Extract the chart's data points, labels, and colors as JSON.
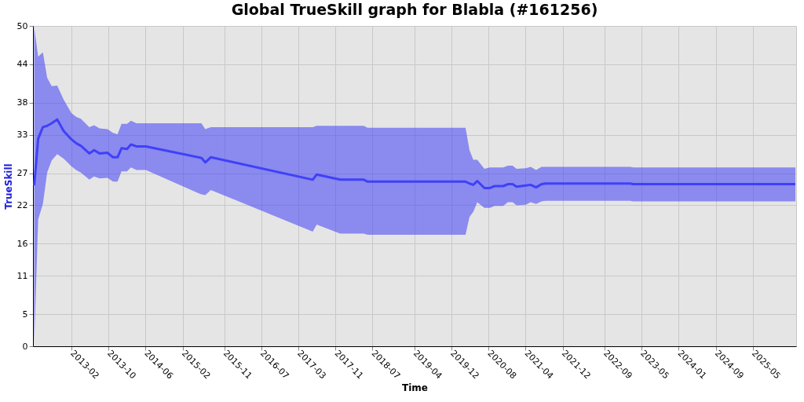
{
  "chart_data": {
    "type": "line",
    "title": "Global TrueSkill graph for Blabla (#161256)",
    "xlabel": "Time",
    "ylabel": "TrueSkill",
    "x": [
      "2012-06-02",
      "2012-06-28",
      "2012-07-29",
      "2012-08-26",
      "2012-09-25",
      "2012-10-31",
      "2012-12-12",
      "2013-02-01",
      "2013-03-04",
      "2013-04-04",
      "2013-05-30",
      "2013-06-30",
      "2013-08-05",
      "2013-09-26",
      "2013-11-01",
      "2013-12-01",
      "2013-12-27",
      "2014-02-01",
      "2014-02-27",
      "2014-04-04",
      "2014-06-05",
      "2015-06-04",
      "2015-06-30",
      "2015-08-05",
      "2017-06-04",
      "2017-06-30",
      "2017-12-01",
      "2018-05-05",
      "2018-05-30",
      "2020-03-03",
      "2020-03-29",
      "2020-04-23",
      "2020-05-19",
      "2020-07-05",
      "2020-08-10",
      "2020-09-10",
      "2020-11-05",
      "2020-12-06",
      "2021-01-06",
      "2021-02-01",
      "2021-04-03",
      "2021-05-04",
      "2021-06-09",
      "2021-07-15",
      "2021-08-10",
      "2023-02-16",
      "2023-03-09",
      "2026-02-05"
    ],
    "series": [
      {
        "color": "#4040f8",
        "values": [
          25.1,
          32.4,
          34.2,
          34.4,
          34.8,
          35.4,
          33.6,
          32.3,
          31.7,
          31.3,
          30.1,
          30.6,
          30.1,
          30.2,
          29.5,
          29.5,
          30.9,
          30.8,
          31.5,
          31.2,
          31.2,
          29.4,
          28.7,
          29.5,
          26.0,
          26.8,
          26.0,
          26.0,
          25.7,
          25.7,
          25.4,
          25.2,
          25.8,
          24.7,
          24.7,
          25.0,
          25.0,
          25.3,
          25.3,
          24.9,
          25.1,
          25.2,
          24.8,
          25.3,
          25.4,
          25.4,
          25.3,
          25.3
        ],
        "lower": [
          0.4,
          19.8,
          22.2,
          27.1,
          29.0,
          30.0,
          29.3,
          28.1,
          27.5,
          27.1,
          26.0,
          26.5,
          26.2,
          26.3,
          25.7,
          25.7,
          27.3,
          27.3,
          27.9,
          27.5,
          27.5,
          23.7,
          23.6,
          24.4,
          17.9,
          19.0,
          17.6,
          17.6,
          17.4,
          17.4,
          20.2,
          21.0,
          22.5,
          21.6,
          21.6,
          21.9,
          21.9,
          22.5,
          22.5,
          22.0,
          22.1,
          22.5,
          22.2,
          22.6,
          22.7,
          22.7,
          22.6,
          22.6
        ],
        "upper": [
          49.8,
          45.2,
          45.9,
          41.9,
          40.6,
          40.7,
          38.5,
          36.4,
          35.8,
          35.5,
          34.2,
          34.5,
          34.0,
          33.9,
          33.3,
          33.1,
          34.7,
          34.7,
          35.2,
          34.8,
          34.8,
          34.8,
          33.9,
          34.2,
          34.2,
          34.4,
          34.4,
          34.4,
          34.1,
          34.1,
          30.6,
          29.1,
          29.1,
          27.7,
          27.9,
          27.9,
          27.9,
          28.2,
          28.2,
          27.7,
          27.8,
          28.0,
          27.5,
          28.0,
          28.0,
          28.0,
          27.9,
          27.9
        ]
      }
    ],
    "xlim": [
      "2012-05-25",
      "2026-02-10"
    ],
    "xticks": [
      "2013-02",
      "2013-10",
      "2014-06",
      "2015-02",
      "2015-11",
      "2016-07",
      "2017-03",
      "2017-11",
      "2018-07",
      "2019-04",
      "2019-12",
      "2020-08",
      "2021-04",
      "2021-12",
      "2022-09",
      "2023-05",
      "2024-01",
      "2024-09",
      "2025-05"
    ],
    "ylim": [
      0,
      50
    ],
    "yticks": [
      0,
      5,
      11,
      16,
      22,
      27,
      33,
      38,
      44,
      50
    ],
    "grid": true,
    "line_style": "solid"
  }
}
